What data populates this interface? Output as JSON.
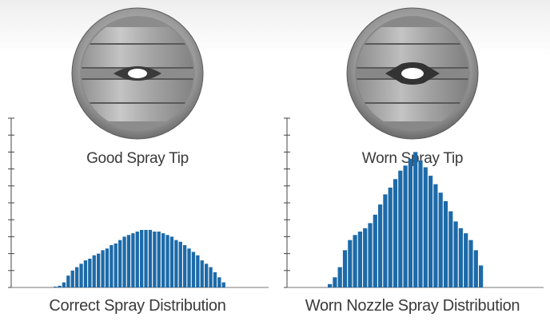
{
  "panels": [
    {
      "tip_caption": "Good Spray Tip",
      "dist_caption": "Correct Spray Distribution"
    },
    {
      "tip_caption": "Worn Spray Tip",
      "dist_caption": "Worn Nozzle Spray Distribution"
    }
  ],
  "colors": {
    "bar": "#1d6aa8",
    "caption": "#3a3a3a"
  },
  "chart_data": [
    {
      "type": "bar",
      "title": "",
      "xlabel": "",
      "ylabel": "",
      "ylim": [
        0,
        10
      ],
      "grid": false,
      "values": [
        0.05,
        0.1,
        0.3,
        0.7,
        1.0,
        1.2,
        1.4,
        1.6,
        1.7,
        1.9,
        2.0,
        2.2,
        2.3,
        2.5,
        2.6,
        2.8,
        3.0,
        3.1,
        3.2,
        3.3,
        3.4,
        3.4,
        3.4,
        3.3,
        3.3,
        3.2,
        3.1,
        3.0,
        2.8,
        2.7,
        2.5,
        2.3,
        2.1,
        1.9,
        1.6,
        1.4,
        1.2,
        0.9,
        0.6,
        0.3
      ]
    },
    {
      "type": "bar",
      "title": "",
      "xlabel": "",
      "ylabel": "",
      "ylim": [
        0,
        10
      ],
      "grid": false,
      "values": [
        0.2,
        0.6,
        1.2,
        2.2,
        2.8,
        3.1,
        3.3,
        3.5,
        3.8,
        4.3,
        4.9,
        5.5,
        5.9,
        6.4,
        6.9,
        7.2,
        7.6,
        8.0,
        7.5,
        7.1,
        6.6,
        6.1,
        5.6,
        5.1,
        4.5,
        3.9,
        3.5,
        3.2,
        2.8,
        2.2,
        1.3
      ]
    }
  ]
}
